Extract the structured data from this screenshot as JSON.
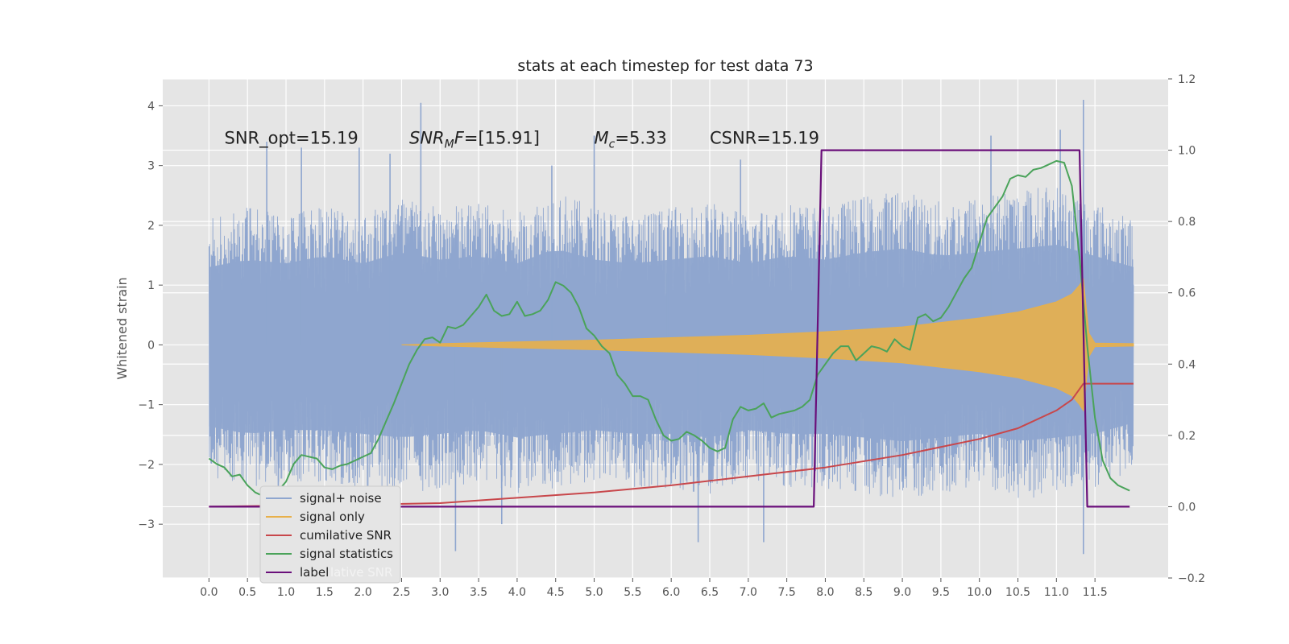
{
  "chart_data": {
    "type": "line",
    "title": "stats at each timestep for test data 73",
    "ylabel": "Whitened strain",
    "xlabel": "",
    "xlim": [
      -0.6,
      12.45
    ],
    "ylim": [
      -3.9,
      4.45
    ],
    "y2lim": [
      -0.2,
      1.2
    ],
    "x_ticks": [
      "0.0",
      "0.5",
      "1.0",
      "1.5",
      "2.0",
      "2.5",
      "3.0",
      "3.5",
      "4.0",
      "4.5",
      "5.0",
      "5.5",
      "6.0",
      "6.5",
      "7.0",
      "7.5",
      "8.0",
      "8.5",
      "9.0",
      "9.5",
      "10.0",
      "10.5",
      "11.0",
      "11.5"
    ],
    "y_ticks": [
      -3,
      -2,
      -1,
      0,
      1,
      2,
      3,
      4
    ],
    "y2_ticks": [
      "−0.2",
      "0.0",
      "0.2",
      "0.4",
      "0.6",
      "0.8",
      "1.0",
      "1.2"
    ],
    "y_tick_labels": [
      "−3",
      "−2",
      "−1",
      "0",
      "1",
      "2",
      "3",
      "4"
    ],
    "grid": true,
    "legend_position": "lower-left",
    "annotations": [
      {
        "text": "SNR_opt=15.19",
        "x": 0.2,
        "y": 3.35
      },
      {
        "text": "SNR",
        "sub": "M",
        "tail": "F=[15.91]",
        "x": 2.6,
        "y": 3.35
      },
      {
        "text": "M",
        "sub": "c",
        "tail": "=5.33",
        "x": 5.0,
        "y": 3.35
      },
      {
        "text": "CSNR=15.19",
        "x": 6.5,
        "y": 3.35
      }
    ],
    "legend_ghost_text": "lative SNR",
    "colors": {
      "noise": "#8fa6cf",
      "signal": "#e8b04a",
      "csnr": "#c8474b",
      "stats": "#4aa35a",
      "label": "#6a0f7a",
      "axes_bg": "#e5e5e5",
      "grid": "#ffffff"
    },
    "series": [
      {
        "name": "signal+ noise",
        "axis": "left",
        "envelope_x": [
          0.0,
          0.5,
          1.0,
          1.5,
          2.0,
          2.5,
          3.0,
          3.5,
          4.0,
          4.5,
          5.0,
          5.5,
          6.0,
          6.5,
          7.0,
          7.5,
          8.0,
          8.5,
          9.0,
          9.5,
          10.0,
          10.5,
          11.0,
          11.5,
          12.0
        ],
        "envelope_high": [
          2.1,
          2.3,
          2.2,
          2.4,
          2.2,
          2.5,
          2.3,
          2.4,
          2.2,
          2.6,
          2.3,
          2.2,
          2.3,
          2.4,
          2.2,
          2.4,
          2.3,
          2.5,
          2.6,
          2.4,
          2.5,
          2.6,
          2.7,
          2.4,
          2.1
        ],
        "envelope_low": [
          -2.2,
          -2.4,
          -2.3,
          -2.3,
          -2.4,
          -2.5,
          -2.4,
          -2.3,
          -2.5,
          -2.4,
          -2.3,
          -2.4,
          -2.4,
          -2.5,
          -2.3,
          -2.4,
          -2.4,
          -2.5,
          -2.6,
          -2.5,
          -2.4,
          -2.6,
          -2.5,
          -2.4,
          -2.1
        ],
        "spike_x": [
          0.75,
          0.9,
          1.95,
          2.75,
          3.2,
          3.8,
          5.0,
          5.95,
          6.35,
          6.9,
          7.2,
          10.15,
          11.05,
          11.35,
          11.35,
          1.2,
          2.35,
          4.45
        ],
        "spike_y": [
          3.4,
          -3.1,
          3.3,
          4.05,
          -3.45,
          -3.0,
          3.5,
          1.2,
          -3.3,
          3.1,
          -3.3,
          3.5,
          3.6,
          4.1,
          -3.5,
          3.3,
          3.2,
          3.0
        ]
      },
      {
        "name": "signal only",
        "axis": "left",
        "x": [
          2.5,
          3.0,
          4.0,
          5.0,
          6.0,
          7.0,
          8.0,
          9.0,
          10.0,
          10.5,
          11.0,
          11.2,
          11.3,
          11.35,
          11.42,
          11.5,
          12.0
        ],
        "amplitude": [
          0.0,
          0.02,
          0.05,
          0.08,
          0.12,
          0.16,
          0.22,
          0.3,
          0.45,
          0.55,
          0.72,
          0.85,
          1.0,
          1.1,
          0.2,
          0.03,
          0.02
        ]
      },
      {
        "name": "cumilative SNR",
        "axis": "right",
        "x": [
          0.0,
          1.0,
          2.0,
          3.0,
          4.0,
          5.0,
          6.0,
          7.0,
          8.0,
          9.0,
          10.0,
          10.5,
          11.0,
          11.2,
          11.35,
          11.5,
          12.0
        ],
        "y": [
          0.0,
          0.003,
          0.006,
          0.01,
          0.025,
          0.04,
          0.06,
          0.085,
          0.11,
          0.145,
          0.19,
          0.22,
          0.27,
          0.3,
          0.345,
          0.345,
          0.345
        ]
      },
      {
        "name": "signal statistics",
        "axis": "right",
        "x": [
          0.0,
          0.1,
          0.2,
          0.3,
          0.4,
          0.5,
          0.6,
          0.7,
          0.8,
          0.9,
          1.0,
          1.1,
          1.2,
          1.3,
          1.4,
          1.5,
          1.6,
          1.7,
          1.8,
          1.9,
          2.0,
          2.1,
          2.2,
          2.3,
          2.4,
          2.5,
          2.6,
          2.7,
          2.8,
          2.9,
          3.0,
          3.1,
          3.2,
          3.3,
          3.4,
          3.5,
          3.6,
          3.7,
          3.8,
          3.9,
          4.0,
          4.1,
          4.2,
          4.3,
          4.4,
          4.5,
          4.6,
          4.7,
          4.8,
          4.9,
          5.0,
          5.1,
          5.2,
          5.3,
          5.4,
          5.5,
          5.6,
          5.7,
          5.8,
          5.9,
          6.0,
          6.1,
          6.2,
          6.3,
          6.4,
          6.5,
          6.6,
          6.7,
          6.8,
          6.9,
          7.0,
          7.1,
          7.2,
          7.3,
          7.4,
          7.5,
          7.6,
          7.7,
          7.8,
          7.9,
          8.0,
          8.1,
          8.2,
          8.3,
          8.4,
          8.5,
          8.6,
          8.7,
          8.8,
          8.9,
          9.0,
          9.1,
          9.2,
          9.3,
          9.4,
          9.5,
          9.6,
          9.7,
          9.8,
          9.9,
          10.0,
          10.1,
          10.2,
          10.3,
          10.4,
          10.5,
          10.6,
          10.7,
          10.8,
          10.9,
          11.0,
          11.1,
          11.2,
          11.3,
          11.4,
          11.5,
          11.6,
          11.7,
          11.8,
          11.9,
          11.95
        ],
        "y": [
          0.135,
          0.12,
          0.11,
          0.085,
          0.09,
          0.06,
          0.04,
          0.03,
          0.035,
          0.045,
          0.07,
          0.12,
          0.145,
          0.14,
          0.135,
          0.11,
          0.105,
          0.115,
          0.12,
          0.13,
          0.14,
          0.15,
          0.19,
          0.24,
          0.29,
          0.345,
          0.4,
          0.44,
          0.47,
          0.475,
          0.46,
          0.505,
          0.5,
          0.51,
          0.535,
          0.56,
          0.595,
          0.55,
          0.535,
          0.54,
          0.575,
          0.535,
          0.54,
          0.55,
          0.58,
          0.63,
          0.62,
          0.6,
          0.56,
          0.5,
          0.48,
          0.45,
          0.43,
          0.37,
          0.345,
          0.31,
          0.31,
          0.3,
          0.245,
          0.2,
          0.185,
          0.19,
          0.21,
          0.2,
          0.185,
          0.165,
          0.155,
          0.165,
          0.245,
          0.28,
          0.27,
          0.275,
          0.29,
          0.25,
          0.26,
          0.265,
          0.27,
          0.28,
          0.3,
          0.37,
          0.4,
          0.43,
          0.45,
          0.45,
          0.41,
          0.43,
          0.45,
          0.445,
          0.435,
          0.47,
          0.45,
          0.44,
          0.53,
          0.54,
          0.52,
          0.53,
          0.56,
          0.6,
          0.64,
          0.67,
          0.74,
          0.81,
          0.84,
          0.87,
          0.92,
          0.93,
          0.925,
          0.945,
          0.95,
          0.96,
          0.97,
          0.965,
          0.9,
          0.7,
          0.45,
          0.25,
          0.13,
          0.08,
          0.06,
          0.05,
          0.045
        ]
      },
      {
        "name": "label",
        "axis": "right",
        "x": [
          0.0,
          7.85,
          7.95,
          11.3,
          11.4,
          11.95
        ],
        "y": [
          0.0,
          0.0,
          1.0,
          1.0,
          0.0,
          0.0
        ]
      }
    ]
  }
}
